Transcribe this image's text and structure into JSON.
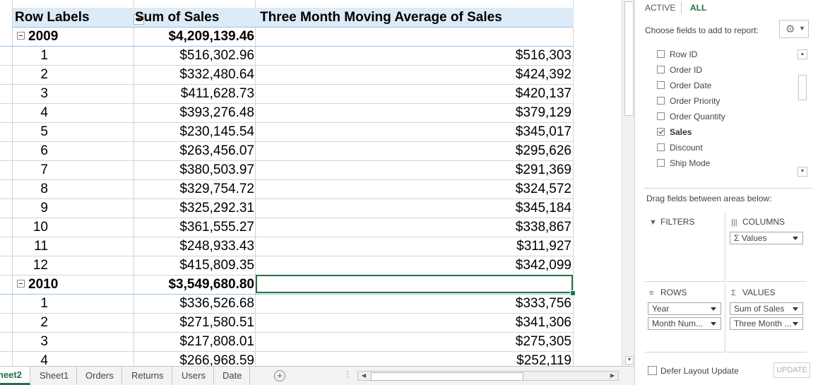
{
  "pivot": {
    "headers": {
      "row_labels": "Row Labels",
      "sum_of_sales": "Sum of Sales",
      "moving_avg": "Three Month Moving Average of Sales"
    },
    "year_2009": {
      "label": "2009",
      "total": "$4,209,139.46",
      "months": [
        {
          "m": "1",
          "sales": "$516,302.96",
          "avg": "$516,303"
        },
        {
          "m": "2",
          "sales": "$332,480.64",
          "avg": "$424,392"
        },
        {
          "m": "3",
          "sales": "$411,628.73",
          "avg": "$420,137"
        },
        {
          "m": "4",
          "sales": "$393,276.48",
          "avg": "$379,129"
        },
        {
          "m": "5",
          "sales": "$230,145.54",
          "avg": "$345,017"
        },
        {
          "m": "6",
          "sales": "$263,456.07",
          "avg": "$295,626"
        },
        {
          "m": "7",
          "sales": "$380,503.97",
          "avg": "$291,369"
        },
        {
          "m": "8",
          "sales": "$329,754.72",
          "avg": "$324,572"
        },
        {
          "m": "9",
          "sales": "$325,292.31",
          "avg": "$345,184"
        },
        {
          "m": "10",
          "sales": "$361,555.27",
          "avg": "$338,867"
        },
        {
          "m": "11",
          "sales": "$248,933.43",
          "avg": "$311,927"
        },
        {
          "m": "12",
          "sales": "$415,809.35",
          "avg": "$342,099"
        }
      ]
    },
    "year_2010": {
      "label": "2010",
      "total": "$3,549,680.80",
      "months": [
        {
          "m": "1",
          "sales": "$336,526.68",
          "avg": "$333,756"
        },
        {
          "m": "2",
          "sales": "$271,580.51",
          "avg": "$341,306"
        },
        {
          "m": "3",
          "sales": "$217,808.01",
          "avg": "$275,305"
        },
        {
          "m": "4",
          "sales": "$266,968.59",
          "avg": "$252,119"
        }
      ]
    }
  },
  "sheet_tabs": [
    "heet2",
    "Sheet1",
    "Orders",
    "Returns",
    "Users",
    "Date"
  ],
  "add_sheet": "+",
  "tab_dots": "⋮",
  "field_pane": {
    "tab_active": "ACTIVE",
    "tab_all": "ALL",
    "choose_label": "Choose fields to add to report:",
    "fields": [
      {
        "label": "Row ID",
        "checked": false
      },
      {
        "label": "Order ID",
        "checked": false
      },
      {
        "label": "Order Date",
        "checked": false
      },
      {
        "label": "Order Priority",
        "checked": false
      },
      {
        "label": "Order Quantity",
        "checked": false
      },
      {
        "label": "Sales",
        "checked": true
      },
      {
        "label": "Discount",
        "checked": false
      },
      {
        "label": "Ship Mode",
        "checked": false
      }
    ],
    "drag_label": "Drag fields between areas below:",
    "filters_label": "FILTERS",
    "columns_label": "COLUMNS",
    "rows_label": "ROWS",
    "values_label": "VALUES",
    "columns_items": [
      "Σ Values"
    ],
    "rows_items": [
      "Year",
      "Month Num..."
    ],
    "values_items": [
      "Sum of Sales",
      "Three Month ..."
    ],
    "defer_label": "Defer Layout Update",
    "update_label": "UPDATE"
  },
  "icons": {
    "filter": "▼",
    "columns": "|||",
    "rows": "≡",
    "values": "Σ",
    "gear": "⚙"
  },
  "colors": {
    "accent": "#217346",
    "header_fill": "#ddebf7",
    "header_border": "#9bc2e6"
  }
}
